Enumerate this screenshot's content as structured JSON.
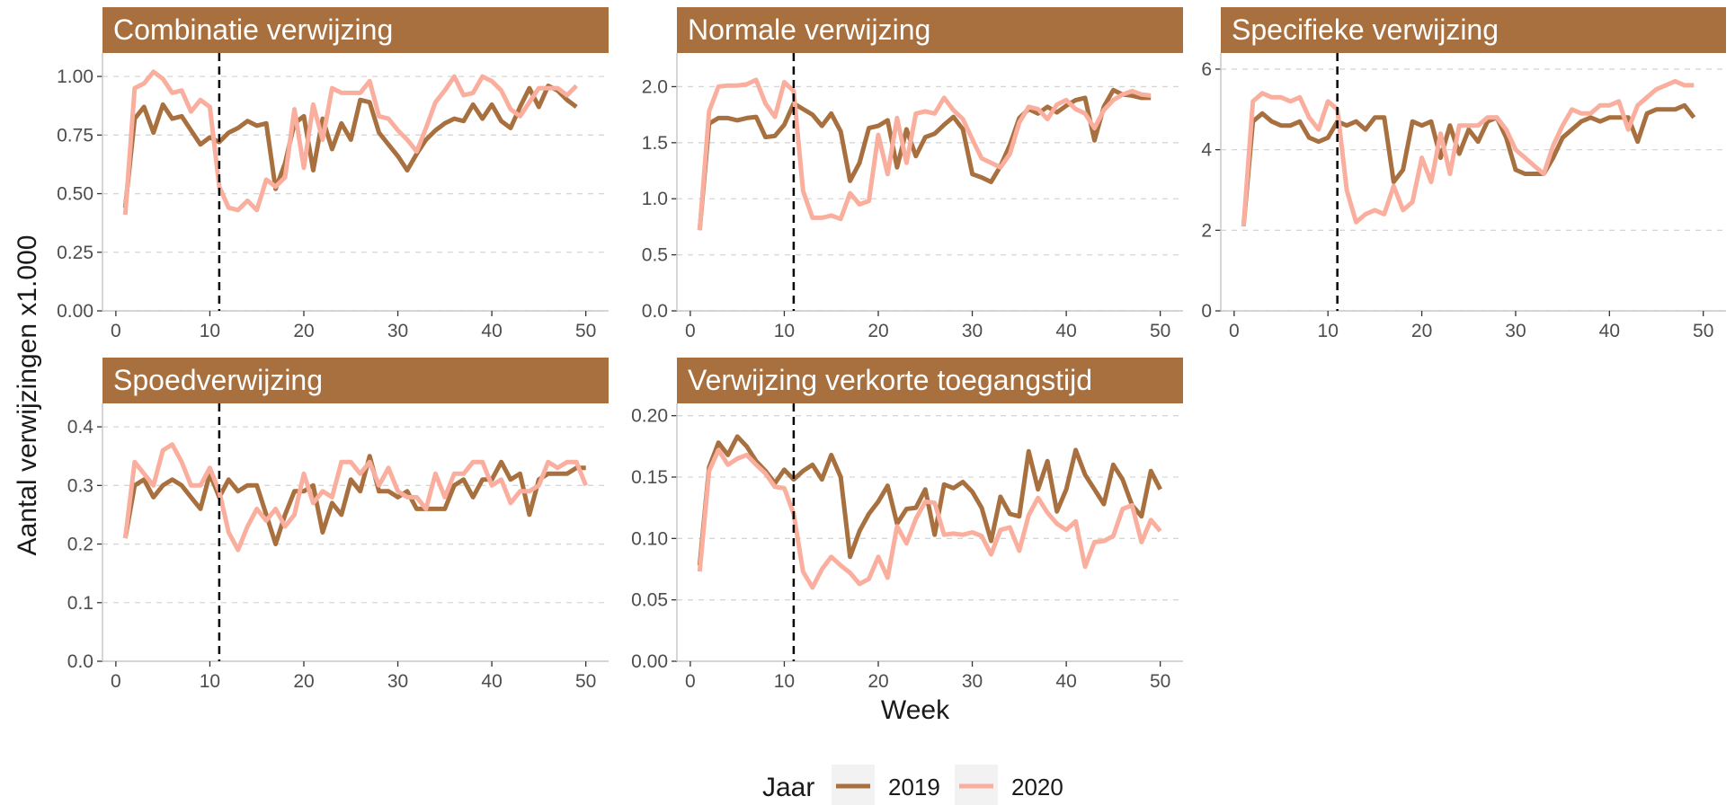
{
  "chart_data": {
    "type": "line",
    "ylabel": "Aantal verwijzingen x1.000",
    "xlabel": "Week",
    "colors": {
      "2019": "#A8703F",
      "2020": "#F9AE9E",
      "strip": "#A8703F"
    },
    "legend": {
      "title": "Jaar",
      "position": "bottom",
      "entries": [
        "2019",
        "2020"
      ]
    },
    "vline_x": 11,
    "x_ticks": [
      0,
      10,
      20,
      30,
      40,
      50
    ],
    "grid": true,
    "panels": [
      {
        "title": "Combinatie verwijzing",
        "ylim": [
          0,
          1.1
        ],
        "y_ticks": [
          0.0,
          0.25,
          0.5,
          0.75,
          1.0
        ],
        "y_tick_labels": [
          "0.00",
          "0.25",
          "0.50",
          "0.75",
          "1.00"
        ],
        "series": [
          {
            "name": "2019",
            "values": [
              0.44,
              0.82,
              0.87,
              0.76,
              0.88,
              0.82,
              0.83,
              0.77,
              0.71,
              0.74,
              0.72,
              0.76,
              0.78,
              0.81,
              0.79,
              0.8,
              0.52,
              0.63,
              0.8,
              0.83,
              0.6,
              0.82,
              0.69,
              0.8,
              0.73,
              0.9,
              0.89,
              0.76,
              0.71,
              0.66,
              0.6,
              0.67,
              0.73,
              0.77,
              0.8,
              0.82,
              0.81,
              0.88,
              0.82,
              0.88,
              0.81,
              0.78,
              0.87,
              0.95,
              0.87,
              0.96,
              0.94,
              0.9,
              0.87
            ]
          },
          {
            "name": "2020",
            "values": [
              0.41,
              0.95,
              0.97,
              1.02,
              0.99,
              0.93,
              0.94,
              0.85,
              0.9,
              0.87,
              0.53,
              0.44,
              0.43,
              0.47,
              0.43,
              0.56,
              0.53,
              0.57,
              0.86,
              0.61,
              0.88,
              0.73,
              0.95,
              0.93,
              0.93,
              0.93,
              0.98,
              0.83,
              0.82,
              0.77,
              0.73,
              0.68,
              0.78,
              0.89,
              0.94,
              1.0,
              0.92,
              0.93,
              1.0,
              0.98,
              0.94,
              0.86,
              0.83,
              0.89,
              0.95,
              0.95,
              0.95,
              0.92,
              0.96
            ]
          }
        ]
      },
      {
        "title": "Normale verwijzing",
        "ylim": [
          0,
          2.3
        ],
        "y_ticks": [
          0.0,
          0.5,
          1.0,
          1.5,
          2.0
        ],
        "y_tick_labels": [
          "0.0",
          "0.5",
          "1.0",
          "1.5",
          "2.0"
        ],
        "series": [
          {
            "name": "2019",
            "values": [
              0.72,
              1.67,
              1.72,
              1.72,
              1.7,
              1.72,
              1.73,
              1.55,
              1.56,
              1.66,
              1.85,
              1.8,
              1.75,
              1.65,
              1.76,
              1.6,
              1.16,
              1.32,
              1.63,
              1.65,
              1.7,
              1.28,
              1.62,
              1.38,
              1.55,
              1.58,
              1.66,
              1.73,
              1.62,
              1.22,
              1.19,
              1.15,
              1.29,
              1.48,
              1.72,
              1.8,
              1.76,
              1.82,
              1.77,
              1.83,
              1.88,
              1.9,
              1.52,
              1.82,
              1.97,
              1.93,
              1.92,
              1.9,
              1.9
            ]
          },
          {
            "name": "2020",
            "values": [
              0.72,
              1.78,
              2.0,
              2.01,
              2.01,
              2.02,
              2.06,
              1.85,
              1.73,
              2.04,
              1.96,
              1.07,
              0.83,
              0.83,
              0.85,
              0.82,
              1.05,
              0.95,
              0.98,
              1.57,
              1.22,
              1.72,
              1.32,
              1.76,
              1.78,
              1.76,
              1.9,
              1.79,
              1.71,
              1.53,
              1.36,
              1.32,
              1.28,
              1.4,
              1.68,
              1.82,
              1.8,
              1.71,
              1.84,
              1.88,
              1.8,
              1.76,
              1.63,
              1.79,
              1.88,
              1.93,
              1.96,
              1.93,
              1.92
            ]
          }
        ]
      },
      {
        "title": "Specifieke verwijzing",
        "ylim": [
          0,
          6.4
        ],
        "y_ticks": [
          0,
          2,
          4,
          6
        ],
        "y_tick_labels": [
          "0",
          "2",
          "4",
          "6"
        ],
        "series": [
          {
            "name": "2019",
            "values": [
              2.1,
              4.7,
              4.9,
              4.7,
              4.6,
              4.6,
              4.7,
              4.3,
              4.2,
              4.3,
              4.7,
              4.6,
              4.7,
              4.5,
              4.8,
              4.8,
              3.2,
              3.5,
              4.7,
              4.6,
              4.7,
              3.8,
              4.6,
              3.9,
              4.5,
              4.2,
              4.7,
              4.8,
              4.3,
              3.5,
              3.4,
              3.4,
              3.4,
              3.8,
              4.3,
              4.5,
              4.7,
              4.8,
              4.7,
              4.8,
              4.8,
              4.8,
              4.2,
              4.9,
              5.0,
              5.0,
              5.0,
              5.1,
              4.8
            ]
          },
          {
            "name": "2020",
            "values": [
              2.1,
              5.2,
              5.4,
              5.3,
              5.3,
              5.2,
              5.3,
              4.8,
              4.5,
              5.2,
              5.0,
              3.0,
              2.2,
              2.4,
              2.5,
              2.4,
              3.1,
              2.5,
              2.7,
              3.8,
              3.2,
              4.4,
              3.4,
              4.6,
              4.6,
              4.6,
              4.8,
              4.8,
              4.5,
              4.0,
              3.8,
              3.6,
              3.4,
              4.1,
              4.6,
              5.0,
              4.9,
              4.9,
              5.1,
              5.1,
              5.2,
              4.5,
              5.1,
              5.3,
              5.5,
              5.6,
              5.7,
              5.6,
              5.6
            ]
          }
        ]
      },
      {
        "title": "Spoedverwijzing",
        "ylim": [
          0,
          0.44
        ],
        "y_ticks": [
          0.0,
          0.1,
          0.2,
          0.3,
          0.4
        ],
        "y_tick_labels": [
          "0.0",
          "0.1",
          "0.2",
          "0.3",
          "0.4"
        ],
        "series": [
          {
            "name": "2019",
            "values": [
              0.21,
              0.3,
              0.31,
              0.28,
              0.3,
              0.31,
              0.3,
              0.28,
              0.26,
              0.32,
              0.28,
              0.31,
              0.29,
              0.3,
              0.3,
              0.25,
              0.2,
              0.25,
              0.29,
              0.29,
              0.3,
              0.22,
              0.27,
              0.25,
              0.31,
              0.29,
              0.35,
              0.29,
              0.29,
              0.28,
              0.29,
              0.26,
              0.26,
              0.26,
              0.26,
              0.3,
              0.31,
              0.28,
              0.31,
              0.31,
              0.34,
              0.31,
              0.32,
              0.25,
              0.31,
              0.32,
              0.32,
              0.32,
              0.33,
              0.33
            ]
          },
          {
            "name": "2020",
            "values": [
              0.21,
              0.34,
              0.32,
              0.3,
              0.36,
              0.37,
              0.34,
              0.3,
              0.3,
              0.33,
              0.29,
              0.22,
              0.19,
              0.23,
              0.26,
              0.24,
              0.26,
              0.23,
              0.25,
              0.32,
              0.27,
              0.29,
              0.28,
              0.34,
              0.34,
              0.32,
              0.34,
              0.3,
              0.33,
              0.29,
              0.28,
              0.28,
              0.26,
              0.32,
              0.28,
              0.32,
              0.32,
              0.34,
              0.34,
              0.3,
              0.31,
              0.27,
              0.29,
              0.29,
              0.3,
              0.34,
              0.33,
              0.34,
              0.34,
              0.3
            ]
          }
        ]
      },
      {
        "title": "Verwijzing verkorte toegangstijd",
        "ylim": [
          0,
          0.21
        ],
        "y_ticks": [
          0.0,
          0.05,
          0.1,
          0.15,
          0.2
        ],
        "y_tick_labels": [
          "0.00",
          "0.05",
          "0.10",
          "0.15",
          "0.20"
        ],
        "series": [
          {
            "name": "2019",
            "values": [
              0.078,
              0.158,
              0.178,
              0.168,
              0.183,
              0.175,
              0.163,
              0.155,
              0.145,
              0.156,
              0.148,
              0.155,
              0.16,
              0.148,
              0.168,
              0.15,
              0.085,
              0.106,
              0.12,
              0.13,
              0.143,
              0.112,
              0.124,
              0.125,
              0.14,
              0.103,
              0.144,
              0.141,
              0.146,
              0.138,
              0.125,
              0.098,
              0.134,
              0.12,
              0.118,
              0.171,
              0.14,
              0.163,
              0.122,
              0.14,
              0.172,
              0.152,
              0.14,
              0.128,
              0.16,
              0.148,
              0.127,
              0.118,
              0.155,
              0.14
            ]
          },
          {
            "name": "2020",
            "values": [
              0.073,
              0.155,
              0.172,
              0.16,
              0.165,
              0.168,
              0.16,
              0.153,
              0.142,
              0.141,
              0.12,
              0.073,
              0.06,
              0.075,
              0.085,
              0.078,
              0.072,
              0.063,
              0.067,
              0.085,
              0.068,
              0.11,
              0.096,
              0.116,
              0.13,
              0.129,
              0.103,
              0.104,
              0.103,
              0.105,
              0.102,
              0.087,
              0.107,
              0.109,
              0.09,
              0.119,
              0.133,
              0.121,
              0.112,
              0.107,
              0.114,
              0.077,
              0.097,
              0.098,
              0.102,
              0.124,
              0.127,
              0.097,
              0.115,
              0.106
            ]
          }
        ]
      }
    ]
  }
}
